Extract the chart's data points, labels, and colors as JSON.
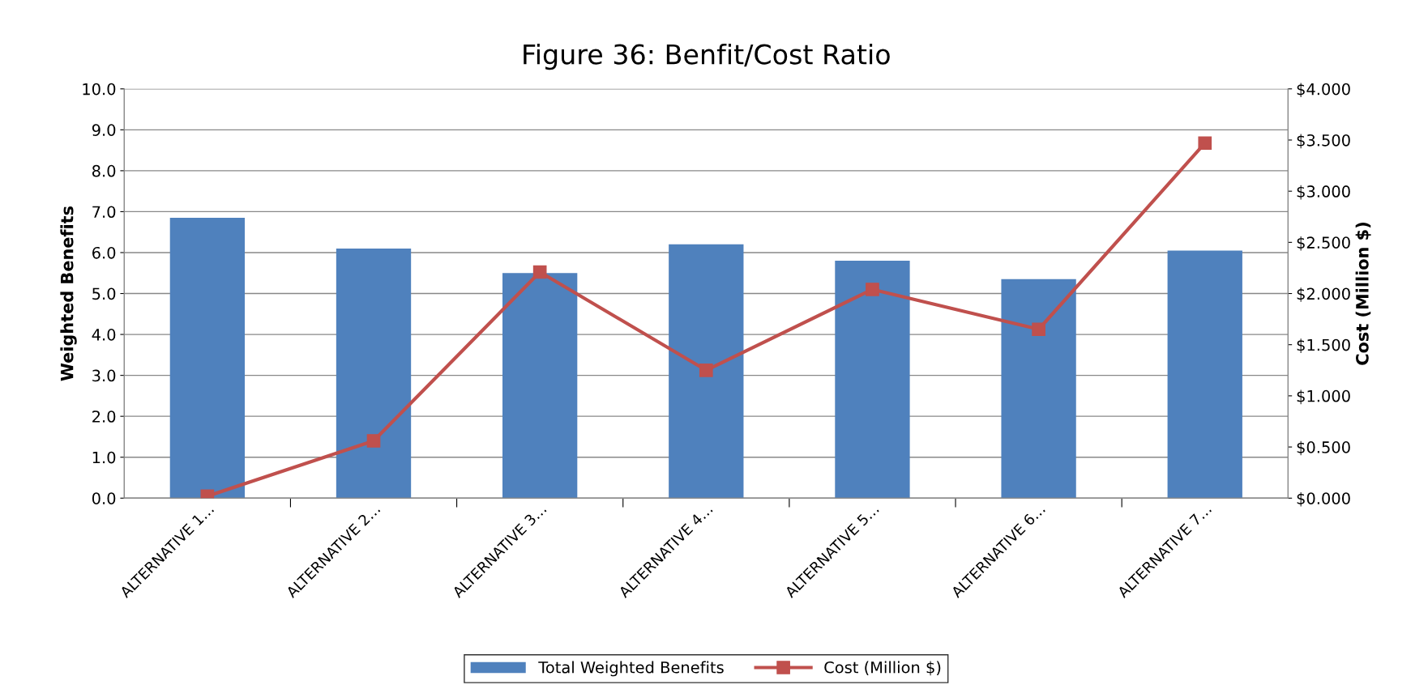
{
  "chart_data": {
    "type": "bar",
    "title": "Figure 36: Benfit/Cost Ratio",
    "ylabel": "Weighted Benefits",
    "y2label": "Cost (Million $)",
    "categories": [
      "ALTERNATIVE 1…",
      "ALTERNATIVE 2…",
      "ALTERNATIVE 3…",
      "ALTERNATIVE 4…",
      "ALTERNATIVE 5…",
      "ALTERNATIVE 6…",
      "ALTERNATIVE 7…"
    ],
    "series": [
      {
        "name": "Total Weighted Benefits",
        "color": "#4f81bd",
        "values": [
          6.85,
          6.1,
          5.5,
          6.2,
          5.8,
          5.35,
          6.05
        ]
      },
      {
        "name": "Cost (Million $)",
        "type": "line",
        "axis": "y2",
        "color": "#c0504d",
        "marker": "square",
        "values": [
          0.02,
          0.56,
          2.21,
          1.25,
          2.04,
          1.65,
          3.47
        ]
      }
    ],
    "ylim": [
      0,
      10
    ],
    "yticks": [
      {
        "value": 0,
        "label": "0.0"
      },
      {
        "value": 1,
        "label": "1.0"
      },
      {
        "value": 2,
        "label": "2.0"
      },
      {
        "value": 3,
        "label": "3.0"
      },
      {
        "value": 4,
        "label": "4.0"
      },
      {
        "value": 5,
        "label": "5.0"
      },
      {
        "value": 6,
        "label": "6.0"
      },
      {
        "value": 7,
        "label": "7.0"
      },
      {
        "value": 8,
        "label": "8.0"
      },
      {
        "value": 9,
        "label": "9.0"
      },
      {
        "value": 10,
        "label": "10.0"
      }
    ],
    "y2lim": [
      0,
      4
    ],
    "y2ticks": [
      {
        "value": 0,
        "label": "$0.000"
      },
      {
        "value": 0.5,
        "label": "$0.500"
      },
      {
        "value": 1,
        "label": "$1.000"
      },
      {
        "value": 1.5,
        "label": "$1.500"
      },
      {
        "value": 2,
        "label": "$2.000"
      },
      {
        "value": 2.5,
        "label": "$2.500"
      },
      {
        "value": 3,
        "label": "$3.000"
      },
      {
        "value": 3.5,
        "label": "$3.500"
      },
      {
        "value": 4,
        "label": "$4.000"
      }
    ],
    "grid": "y",
    "legend": "bottom"
  }
}
